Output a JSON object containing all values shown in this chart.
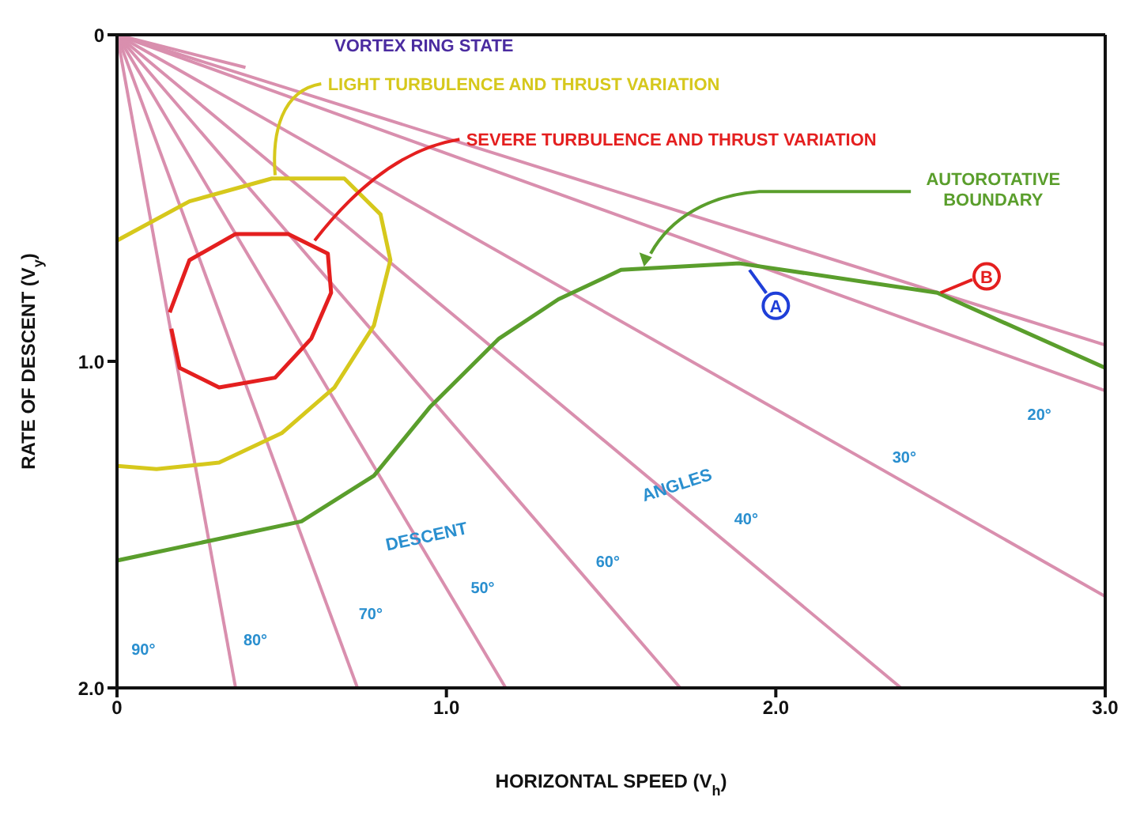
{
  "chart_data": {
    "type": "line",
    "xlabel": "HORIZONTAL SPEED (V$_{h}$)",
    "ylabel": "RATE OF DESCENT (V$_{y}$)",
    "xlim": [
      0,
      3
    ],
    "ylim": [
      2,
      0
    ],
    "xticks": [
      0,
      {
        "value": 1,
        "label": "1.0"
      },
      {
        "value": 2,
        "label": "2.0"
      },
      {
        "value": 3,
        "label": "3.0"
      }
    ],
    "yticks": [
      0,
      {
        "value": 1,
        "label": "1.0"
      },
      {
        "value": 2,
        "label": "2.0"
      }
    ],
    "grid": false,
    "legend": false,
    "marker": "none",
    "line_style": "solid",
    "series": [
      {
        "color": "#d98fae",
        "x": [
          0,
          0.36
        ],
        "values": [
          0,
          2.0
        ]
      },
      {
        "color": "#d98fae",
        "x": [
          0,
          0.73
        ],
        "values": [
          0,
          2.0
        ]
      },
      {
        "color": "#d98fae",
        "x": [
          0,
          1.18
        ],
        "values": [
          0,
          2.0
        ]
      },
      {
        "color": "#d98fae",
        "x": [
          0,
          1.71
        ],
        "values": [
          0,
          2.0
        ]
      },
      {
        "color": "#d98fae",
        "x": [
          0,
          2.38
        ],
        "values": [
          0,
          2.0
        ]
      },
      {
        "color": "#d98fae",
        "x": [
          0,
          3.0
        ],
        "values": [
          0,
          1.72
        ]
      },
      {
        "color": "#d98fae",
        "x": [
          0,
          3.0
        ],
        "values": [
          0,
          1.09
        ]
      },
      {
        "color": "#d98fae",
        "x": [
          0,
          3.0
        ],
        "values": [
          0,
          0.95
        ]
      },
      {
        "color": "#d98fae",
        "x": [
          0,
          0.39
        ],
        "values": [
          0,
          0.1
        ]
      },
      {
        "name": "LIGHT TURBULENCE AND THRUST VARIATION",
        "color": "#d6c81c",
        "x": [
          0,
          0.22,
          0.47,
          0.69,
          0.8,
          0.83,
          0.78,
          0.66,
          0.5,
          0.31,
          0.12,
          0
        ],
        "values": [
          0.63,
          0.51,
          0.44,
          0.44,
          0.55,
          0.69,
          0.89,
          1.08,
          1.22,
          1.31,
          1.33,
          1.32
        ]
      },
      {
        "name": "SEVERE TURBULENCE AND THRUST VARIATION",
        "color": "#e41f1f",
        "x": [
          0.16,
          0.22,
          0.36,
          0.52,
          0.64,
          0.65,
          0.59,
          0.48,
          0.31,
          0.19,
          0.165
        ],
        "values": [
          0.85,
          0.69,
          0.61,
          0.61,
          0.67,
          0.79,
          0.93,
          1.05,
          1.08,
          1.02,
          0.9
        ]
      },
      {
        "name": "AUTOROTATIVE BOUNDARY",
        "color": "#5a9e2c",
        "x": [
          0,
          0.56,
          0.78,
          0.95,
          1.16,
          1.34,
          1.53,
          1.89,
          2.49,
          3.0
        ],
        "values": [
          1.61,
          1.49,
          1.35,
          1.14,
          0.93,
          0.81,
          0.72,
          0.7,
          0.79,
          1.02
        ]
      }
    ],
    "annotations": [
      "VORTEX RING STATE",
      "DESCENT",
      "ANGLES",
      "90°",
      "80°",
      "70°",
      "50°",
      "60°",
      "40°",
      "30°",
      "20°",
      "A",
      "B"
    ]
  }
}
